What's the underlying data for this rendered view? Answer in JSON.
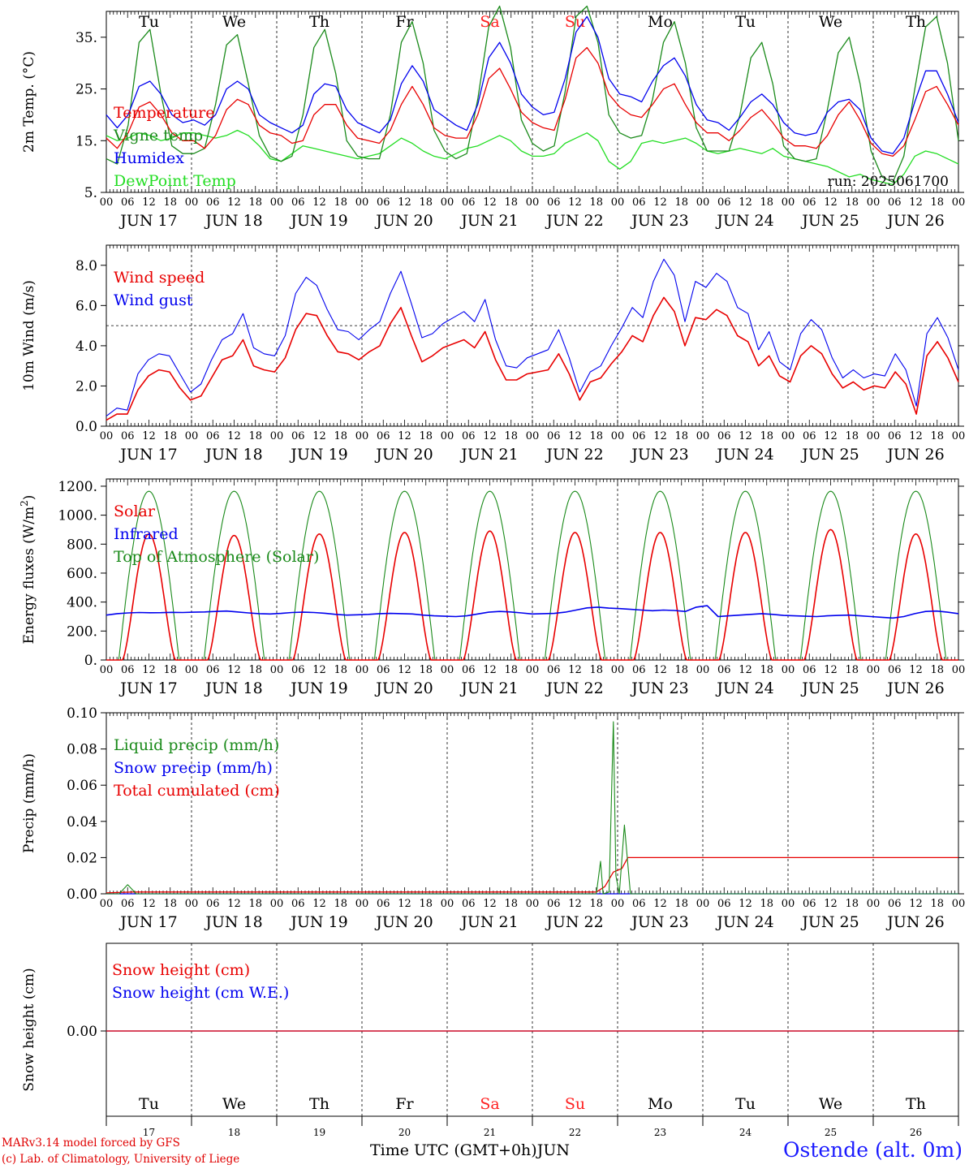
{
  "footer": {
    "credit_line1": "MARv3.14 model forced by GFS",
    "credit_line2": "(c) Lab. of Climatology, University of Liege",
    "x_title": "Time UTC (GMT+0h)",
    "x_month": "JUN",
    "station": "Ostende (alt. 0m)"
  },
  "colors": {
    "red": "#e80000",
    "blue": "#0000ee",
    "dark_green": "#1a8a1a",
    "light_green": "#22dd22",
    "weekend": "#ff2020"
  },
  "chart_data": [
    {
      "type": "line",
      "ylabel": "2m Temp. (°C)",
      "ylim": [
        5,
        40
      ],
      "yticks": [
        "35.",
        "25.",
        "15.",
        "5."
      ],
      "ytick_values": [
        35,
        25,
        15,
        5
      ],
      "annotation": "run: 2025061700",
      "weekday_labels": [
        "Tu",
        "We",
        "Th",
        "Fr",
        "Sa",
        "Su",
        "Mo",
        "Tu",
        "We",
        "Th"
      ],
      "weekend_days": [
        4,
        5
      ],
      "series": [
        {
          "name": "Temperature",
          "color": "red",
          "values": [
            15.5,
            13.5,
            16.5,
            21.5,
            22.5,
            20.0,
            16.5,
            15.0,
            15.0,
            13.5,
            16.0,
            21.0,
            23.0,
            22.0,
            18.0,
            16.5,
            16.0,
            14.5,
            15.0,
            20.0,
            22.0,
            22.0,
            18.0,
            15.5,
            15.0,
            14.5,
            17.0,
            22.0,
            25.5,
            22.0,
            17.5,
            16.0,
            15.5,
            15.5,
            20.0,
            27.0,
            29.0,
            25.0,
            20.5,
            18.5,
            17.5,
            17.0,
            23.0,
            31.0,
            33.0,
            30.0,
            24.0,
            21.5,
            20.0,
            19.5,
            22.0,
            25.0,
            26.0,
            22.0,
            18.5,
            16.5,
            16.5,
            15.0,
            17.0,
            19.5,
            21.0,
            18.5,
            15.5,
            14.0,
            14.0,
            13.5,
            16.0,
            20.0,
            22.5,
            19.0,
            14.5,
            12.5,
            12.0,
            14.0,
            19.0,
            24.5,
            25.5,
            22.0,
            18.0
          ]
        },
        {
          "name": "Vigne temp",
          "color": "dark_green",
          "values": [
            11.5,
            10.5,
            18.0,
            34.0,
            36.5,
            24.0,
            14.0,
            12.5,
            12.5,
            13.5,
            22.0,
            33.5,
            35.5,
            26.0,
            16.0,
            12.0,
            11.0,
            12.0,
            20.0,
            33.0,
            36.5,
            28.0,
            15.0,
            12.0,
            11.5,
            11.5,
            20.0,
            34.0,
            38.0,
            30.0,
            17.0,
            13.0,
            11.5,
            12.5,
            23.0,
            37.0,
            41.0,
            33.0,
            19.0,
            14.5,
            13.0,
            14.0,
            24.5,
            39.0,
            41.0,
            34.0,
            20.0,
            16.5,
            15.5,
            16.0,
            23.0,
            34.0,
            38.0,
            30.0,
            17.5,
            13.0,
            13.0,
            13.0,
            20.0,
            31.0,
            34.0,
            26.0,
            14.0,
            11.5,
            11.0,
            11.5,
            21.0,
            32.0,
            35.0,
            26.0,
            13.0,
            8.0,
            7.0,
            12.0,
            25.0,
            37.0,
            39.0,
            30.0,
            15.0
          ]
        },
        {
          "name": "Humidex",
          "color": "blue",
          "values": [
            20.0,
            17.5,
            20.0,
            25.5,
            26.5,
            24.0,
            20.0,
            18.5,
            19.0,
            18.0,
            20.0,
            25.0,
            26.5,
            25.0,
            20.0,
            18.5,
            17.5,
            16.5,
            18.0,
            24.0,
            26.0,
            25.5,
            21.0,
            18.5,
            17.5,
            16.5,
            19.0,
            26.0,
            29.5,
            26.5,
            21.0,
            19.5,
            18.0,
            17.0,
            22.0,
            31.0,
            34.0,
            30.0,
            24.0,
            21.5,
            20.0,
            20.5,
            27.0,
            36.0,
            39.0,
            35.0,
            27.0,
            24.0,
            23.5,
            22.5,
            26.5,
            29.5,
            31.0,
            27.5,
            22.0,
            19.0,
            18.5,
            17.0,
            19.5,
            22.5,
            24.0,
            22.0,
            18.5,
            16.5,
            16.0,
            16.5,
            20.5,
            22.5,
            23.0,
            21.0,
            15.5,
            13.0,
            12.5,
            15.5,
            22.5,
            28.5,
            28.5,
            24.0,
            18.5
          ]
        },
        {
          "name": "DewPoint Temp",
          "color": "light_green",
          "values": [
            16.0,
            15.0,
            15.5,
            16.5,
            16.0,
            15.0,
            15.5,
            16.5,
            16.5,
            16.0,
            15.5,
            16.0,
            17.0,
            16.0,
            14.0,
            11.5,
            11.0,
            12.5,
            14.0,
            13.5,
            13.0,
            12.5,
            12.0,
            11.5,
            12.0,
            12.5,
            14.0,
            15.5,
            14.5,
            13.0,
            12.0,
            11.5,
            12.5,
            13.5,
            14.0,
            15.0,
            16.0,
            15.0,
            13.0,
            12.0,
            12.0,
            12.5,
            14.5,
            15.5,
            16.5,
            15.0,
            11.0,
            9.5,
            11.0,
            14.5,
            15.0,
            14.5,
            15.0,
            15.5,
            14.5,
            13.0,
            12.5,
            13.0,
            13.5,
            13.0,
            12.5,
            13.5,
            12.0,
            11.5,
            11.0,
            10.5,
            10.0,
            9.0,
            8.0,
            8.5,
            7.5,
            7.0,
            6.5,
            8.5,
            12.0,
            13.0,
            12.5,
            11.5,
            10.5
          ]
        }
      ]
    },
    {
      "type": "line",
      "ylabel": "10m Wind (m/s)",
      "ylim": [
        0,
        9
      ],
      "yticks": [
        "8.0",
        "6.0",
        "4.0",
        "2.0",
        "0.0"
      ],
      "ytick_values": [
        8,
        6,
        4,
        2,
        0
      ],
      "reference_line": 5.0,
      "series": [
        {
          "name": "Wind speed",
          "color": "red",
          "values": [
            0.3,
            0.6,
            0.6,
            1.8,
            2.5,
            2.8,
            2.7,
            1.9,
            1.3,
            1.5,
            2.4,
            3.3,
            3.5,
            4.3,
            3.0,
            2.8,
            2.7,
            3.4,
            4.8,
            5.6,
            5.5,
            4.5,
            3.7,
            3.6,
            3.3,
            3.7,
            4.0,
            5.1,
            5.9,
            4.5,
            3.2,
            3.5,
            3.9,
            4.1,
            4.3,
            3.9,
            4.7,
            3.3,
            2.3,
            2.3,
            2.6,
            2.7,
            2.8,
            3.6,
            2.6,
            1.3,
            2.2,
            2.4,
            3.1,
            3.7,
            4.5,
            4.2,
            5.5,
            6.4,
            5.7,
            4.0,
            5.4,
            5.3,
            5.8,
            5.5,
            4.5,
            4.2,
            3.0,
            3.5,
            2.5,
            2.2,
            3.5,
            4.0,
            3.6,
            2.6,
            1.9,
            2.2,
            1.8,
            2.0,
            1.9,
            2.7,
            2.1,
            0.6,
            3.5,
            4.2,
            3.4,
            2.2
          ]
        },
        {
          "name": "Wind gust",
          "color": "blue",
          "values": [
            0.5,
            0.9,
            0.8,
            2.6,
            3.3,
            3.6,
            3.5,
            2.6,
            1.7,
            2.1,
            3.3,
            4.3,
            4.6,
            5.6,
            3.9,
            3.6,
            3.5,
            4.5,
            6.6,
            7.4,
            7.0,
            5.8,
            4.8,
            4.7,
            4.3,
            4.8,
            5.2,
            6.6,
            7.7,
            6.1,
            4.4,
            4.6,
            5.1,
            5.4,
            5.7,
            5.2,
            6.3,
            4.3,
            3.0,
            2.9,
            3.4,
            3.6,
            3.8,
            4.8,
            3.4,
            1.7,
            2.7,
            3.0,
            4.0,
            4.9,
            5.9,
            5.4,
            7.2,
            8.3,
            7.5,
            5.2,
            7.2,
            6.9,
            7.6,
            7.2,
            5.9,
            5.6,
            3.8,
            4.7,
            3.2,
            2.8,
            4.6,
            5.3,
            4.8,
            3.4,
            2.4,
            2.8,
            2.4,
            2.6,
            2.5,
            3.6,
            2.8,
            1.0,
            4.6,
            5.4,
            4.4,
            2.8
          ]
        }
      ]
    },
    {
      "type": "line",
      "ylabel": "Energy fluxes (W/m²)",
      "ylim": [
        0,
        1250
      ],
      "yticks": [
        "1200.",
        "1000.",
        "800.",
        "600.",
        "400.",
        "200.",
        "0."
      ],
      "ytick_values": [
        1200,
        1000,
        800,
        600,
        400,
        200,
        0
      ],
      "series": [
        {
          "name": "Solar",
          "color": "red",
          "daily_peaks": [
            870,
            860,
            870,
            880,
            890,
            880,
            880,
            880,
            900,
            870
          ]
        },
        {
          "name": "Infrared",
          "color": "blue",
          "values": [
            310,
            320,
            325,
            328,
            326,
            327,
            329,
            328,
            330,
            332,
            335,
            338,
            332,
            325,
            320,
            318,
            322,
            328,
            330,
            328,
            323,
            315,
            310,
            312,
            315,
            320,
            322,
            320,
            318,
            310,
            305,
            302,
            300,
            305,
            318,
            330,
            335,
            332,
            325,
            318,
            320,
            322,
            330,
            345,
            360,
            365,
            358,
            355,
            350,
            345,
            340,
            345,
            342,
            335,
            365,
            375,
            300,
            305,
            310,
            315,
            320,
            315,
            308,
            305,
            302,
            300,
            305,
            308,
            310,
            305,
            300,
            295,
            290,
            300,
            320,
            335,
            338,
            330,
            320
          ]
        },
        {
          "name": "Top of Atmosphere (Solar)",
          "color": "dark_green",
          "daily_peak": 1165
        }
      ]
    },
    {
      "type": "line",
      "ylabel": "Precip (mm/h)",
      "ylim": [
        0,
        0.1
      ],
      "yticks": [
        "0.10",
        "0.08",
        "0.06",
        "0.04",
        "0.02",
        "0.00"
      ],
      "ytick_values": [
        0.1,
        0.08,
        0.06,
        0.04,
        0.02,
        0.0
      ],
      "series": [
        {
          "name": "Liquid precip (mm/h)",
          "color": "dark_green",
          "points": [
            [
              0,
              0
            ],
            [
              0.15,
              0
            ],
            [
              0.25,
              0.005
            ],
            [
              0.35,
              0
            ],
            [
              5.75,
              0
            ],
            [
              5.8,
              0.018
            ],
            [
              5.83,
              0
            ],
            [
              5.9,
              0.001
            ],
            [
              5.95,
              0.095
            ],
            [
              5.98,
              0.01
            ],
            [
              6.02,
              0
            ],
            [
              6.08,
              0.038
            ],
            [
              6.15,
              0
            ],
            [
              10,
              0
            ]
          ]
        },
        {
          "name": "Snow precip (mm/h)",
          "color": "blue",
          "points": [
            [
              0,
              0
            ],
            [
              10,
              0
            ]
          ]
        },
        {
          "name": "Total cumulated (cm)",
          "color": "red",
          "points": [
            [
              0,
              0.0005
            ],
            [
              0.3,
              0.001
            ],
            [
              5.75,
              0.001
            ],
            [
              5.85,
              0.004
            ],
            [
              5.95,
              0.012
            ],
            [
              6.05,
              0.014
            ],
            [
              6.12,
              0.02
            ],
            [
              10,
              0.02
            ]
          ]
        }
      ]
    },
    {
      "type": "line",
      "ylabel": "Snow height (cm)",
      "yticks": [
        "0.00"
      ],
      "ytick_values": [
        0
      ],
      "weekday_labels": [
        "Tu",
        "We",
        "Th",
        "Fr",
        "Sa",
        "Su",
        "Mo",
        "Tu",
        "We",
        "Th"
      ],
      "weekend_days": [
        4,
        5
      ],
      "day_numbers": [
        "17",
        "18",
        "19",
        "20",
        "21",
        "22",
        "23",
        "24",
        "25",
        "26"
      ],
      "series": [
        {
          "name": "Snow height (cm)",
          "color": "red",
          "values": [
            0,
            0
          ]
        },
        {
          "name": "Snow height (cm W.E.)",
          "color": "blue",
          "values": [
            0,
            0
          ]
        }
      ]
    }
  ],
  "x_axis": {
    "hour_labels": [
      "00",
      "06",
      "12",
      "18"
    ],
    "end_label": "00",
    "day_labels": [
      "JUN 17",
      "JUN 18",
      "JUN 19",
      "JUN 20",
      "JUN 21",
      "JUN 22",
      "JUN 23",
      "JUN 24",
      "JUN 25",
      "JUN 26"
    ]
  }
}
